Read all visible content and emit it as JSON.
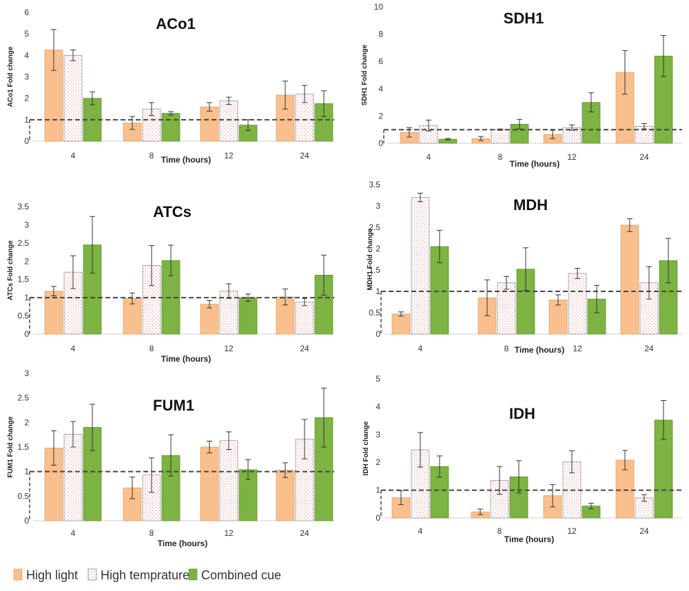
{
  "legend": {
    "series": [
      {
        "name": "High light",
        "color": "#f9c08d",
        "pattern": "solid"
      },
      {
        "name": "High temprature",
        "color": "#ffffff",
        "pattern": "dots"
      },
      {
        "name": "Combined cue",
        "color": "#7cb342",
        "pattern": "solid"
      }
    ]
  },
  "chart_data": [
    {
      "type": "bar",
      "title": "ACo1",
      "ylabel": "ACo1 Fold change",
      "xlabel": "Time (hours)",
      "categories": [
        "4",
        "8",
        "12",
        "24"
      ],
      "ylim": [
        0,
        6
      ],
      "yticks": [
        0,
        1,
        2,
        3,
        4,
        5,
        6
      ],
      "reference_line": 1,
      "series": [
        {
          "name": "High light",
          "values": [
            4.25,
            0.85,
            1.6,
            2.15
          ],
          "errors": [
            0.95,
            0.3,
            0.2,
            0.65
          ]
        },
        {
          "name": "High temprature",
          "values": [
            4.0,
            1.5,
            1.88,
            2.2
          ],
          "errors": [
            0.25,
            0.3,
            0.17,
            0.4
          ]
        },
        {
          "name": "Combined cue",
          "values": [
            2.0,
            1.3,
            0.75,
            1.75
          ],
          "errors": [
            0.3,
            0.08,
            0.25,
            0.6
          ]
        }
      ]
    },
    {
      "type": "bar",
      "title": "SDH1",
      "ylabel": "SDH1 Fold change",
      "xlabel": "Time (hours)",
      "categories": [
        "4",
        "8",
        "12",
        "24"
      ],
      "ylim": [
        0,
        10
      ],
      "yticks": [
        0,
        2,
        4,
        6,
        8,
        10
      ],
      "reference_line": 1,
      "series": [
        {
          "name": "High light",
          "values": [
            0.8,
            0.35,
            0.65,
            5.2
          ],
          "errors": [
            0.35,
            0.15,
            0.3,
            1.6
          ]
        },
        {
          "name": "High temprature",
          "values": [
            1.3,
            1.0,
            1.15,
            1.25
          ],
          "errors": [
            0.4,
            0.05,
            0.2,
            0.2
          ]
        },
        {
          "name": "Combined cue",
          "values": [
            0.3,
            1.4,
            3.0,
            6.4
          ],
          "errors": [
            0.05,
            0.35,
            0.7,
            1.5
          ]
        }
      ]
    },
    {
      "type": "bar",
      "title": "ATCs",
      "ylabel": "ATCs Fold change",
      "xlabel": "Time (hours)",
      "categories": [
        "4",
        "8",
        "12",
        "24"
      ],
      "ylim": [
        0,
        3.5
      ],
      "yticks": [
        0,
        0.5,
        1,
        1.5,
        2,
        2.5,
        3,
        3.5
      ],
      "reference_line": 1,
      "series": [
        {
          "name": "High light",
          "values": [
            1.18,
            0.98,
            0.82,
            1.02
          ],
          "errors": [
            0.13,
            0.15,
            0.1,
            0.22
          ]
        },
        {
          "name": "High temprature",
          "values": [
            1.7,
            1.88,
            1.18,
            0.88
          ],
          "errors": [
            0.45,
            0.55,
            0.2,
            0.1
          ]
        },
        {
          "name": "Combined cue",
          "values": [
            2.45,
            2.02,
            1.0,
            1.62
          ],
          "errors": [
            0.78,
            0.42,
            0.1,
            0.55
          ]
        }
      ]
    },
    {
      "type": "bar",
      "title": "MDH",
      "ylabel": "MDH1 Fold change",
      "xlabel": "Time (hours)",
      "categories": [
        "4",
        "8",
        "12",
        "24"
      ],
      "ylim": [
        0,
        3.5
      ],
      "yticks": [
        0,
        0.5,
        1,
        1.5,
        2,
        2.5,
        3,
        3.5
      ],
      "reference_line": 1,
      "series": [
        {
          "name": "High light",
          "values": [
            0.47,
            0.85,
            0.8,
            2.55
          ],
          "errors": [
            0.05,
            0.42,
            0.12,
            0.15
          ]
        },
        {
          "name": "High temprature",
          "values": [
            3.2,
            1.2,
            1.42,
            1.2
          ],
          "errors": [
            0.1,
            0.15,
            0.12,
            0.38
          ]
        },
        {
          "name": "Combined cue",
          "values": [
            2.05,
            1.52,
            0.82,
            1.72
          ],
          "errors": [
            0.38,
            0.5,
            0.32,
            0.52
          ]
        }
      ]
    },
    {
      "type": "bar",
      "title": "FUM1",
      "ylabel": "FUM1 Fold change",
      "xlabel": "Time (hours)",
      "categories": [
        "4",
        "8",
        "12",
        "24"
      ],
      "ylim": [
        0,
        3
      ],
      "yticks": [
        0,
        0.5,
        1,
        1.5,
        2,
        2.5,
        3
      ],
      "reference_line": 1,
      "series": [
        {
          "name": "High light",
          "values": [
            1.48,
            0.67,
            1.5,
            1.03
          ],
          "errors": [
            0.35,
            0.22,
            0.12,
            0.15
          ]
        },
        {
          "name": "High temprature",
          "values": [
            1.76,
            0.93,
            1.63,
            1.66
          ],
          "errors": [
            0.26,
            0.35,
            0.18,
            0.4
          ]
        },
        {
          "name": "Combined cue",
          "values": [
            1.9,
            1.33,
            1.04,
            2.1
          ],
          "errors": [
            0.47,
            0.42,
            0.2,
            0.6
          ]
        }
      ]
    },
    {
      "type": "bar",
      "title": "IDH",
      "ylabel": "IDH Fold change",
      "xlabel": "Time (hours)",
      "categories": [
        "4",
        "8",
        "12",
        "24"
      ],
      "ylim": [
        0,
        5
      ],
      "yticks": [
        0,
        1,
        2,
        3,
        4,
        5
      ],
      "reference_line": 1,
      "series": [
        {
          "name": "High light",
          "values": [
            0.73,
            0.22,
            0.8,
            2.08
          ],
          "errors": [
            0.25,
            0.1,
            0.4,
            0.35
          ]
        },
        {
          "name": "High temprature",
          "values": [
            2.45,
            1.35,
            2.02,
            0.72
          ],
          "errors": [
            0.62,
            0.5,
            0.4,
            0.12
          ]
        },
        {
          "name": "Combined cue",
          "values": [
            1.85,
            1.48,
            0.43,
            3.52
          ],
          "errors": [
            0.38,
            0.58,
            0.1,
            0.7
          ]
        }
      ]
    }
  ]
}
